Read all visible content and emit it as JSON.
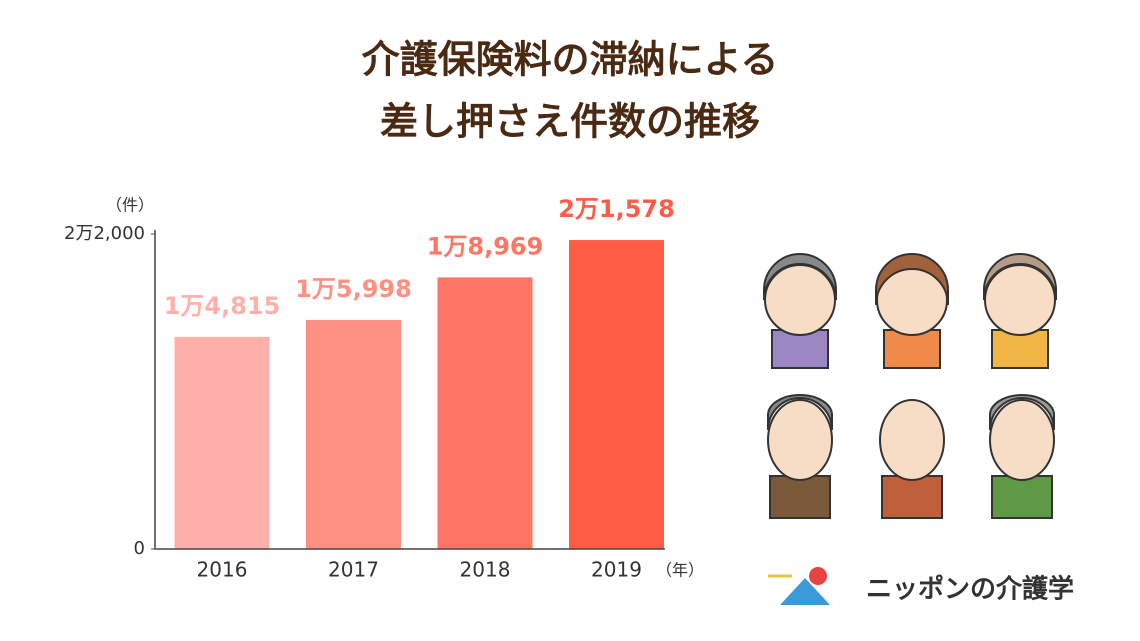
{
  "chart_data": {
    "type": "bar",
    "title": [
      "介護保険料の滞納による",
      "差し押さえ件数の推移"
    ],
    "y_label": "（件）",
    "x_label": "（年）",
    "categories": [
      "2016",
      "2017",
      "2018",
      "2019"
    ],
    "values": [
      14815,
      15998,
      18969,
      21578
    ],
    "value_labels": [
      "1万4,815",
      "1万5,998",
      "1万8,969",
      "2万1,578"
    ],
    "colors": [
      "#ffb0aa",
      "#ff9184",
      "#ff7563",
      "#ff5c45"
    ],
    "ylim": [
      0,
      22000
    ],
    "yticks": [
      0,
      {
        "value": 22000,
        "label": "2万2,000"
      }
    ]
  },
  "logo": {
    "text": "ニッポンの介護学"
  }
}
